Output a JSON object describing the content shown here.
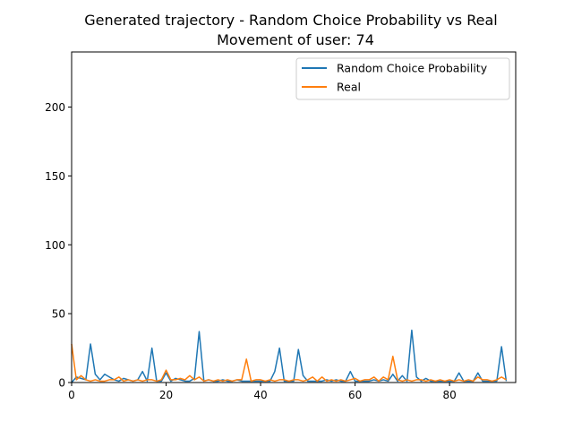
{
  "chart_data": {
    "type": "line",
    "title": "Generated trajectory - Random Choice Probability vs Real",
    "subtitle": "Movement of user: 74",
    "xlabel": "",
    "ylabel": "",
    "xlim": [
      0,
      94
    ],
    "ylim": [
      0,
      240
    ],
    "xticks": [
      0,
      20,
      40,
      60,
      80
    ],
    "yticks": [
      0,
      50,
      100,
      150,
      200
    ],
    "grid": false,
    "legend_position": "top-right",
    "series": [
      {
        "name": "Random Choice Probability",
        "color": "#1f77b4",
        "values": [
          0,
          4,
          3,
          2,
          28,
          6,
          2,
          6,
          4,
          2,
          1,
          3,
          2,
          1,
          2,
          8,
          1,
          25,
          1,
          1,
          7,
          1,
          3,
          2,
          1,
          1,
          3,
          37,
          1,
          2,
          1,
          1,
          2,
          1,
          1,
          2,
          1,
          1,
          1,
          1,
          1,
          1,
          1,
          8,
          25,
          1,
          1,
          1,
          24,
          5,
          1,
          1,
          1,
          1,
          2,
          1,
          2,
          1,
          1,
          8,
          1,
          1,
          1,
          1,
          2,
          1,
          2,
          1,
          6,
          1,
          5,
          1,
          38,
          4,
          1,
          3,
          1,
          1,
          1,
          1,
          1,
          1,
          7,
          1,
          1,
          1,
          7,
          1,
          1,
          1,
          1,
          26,
          1
        ]
      },
      {
        "name": "Real",
        "color": "#ff7f0e",
        "values": [
          28,
          2,
          5,
          2,
          1,
          2,
          1,
          1,
          2,
          2,
          4,
          1,
          2,
          1,
          2,
          1,
          2,
          2,
          1,
          2,
          9,
          2,
          2,
          3,
          2,
          5,
          2,
          4,
          1,
          2,
          1,
          2,
          1,
          2,
          1,
          2,
          2,
          17,
          1,
          2,
          2,
          1,
          2,
          1,
          2,
          2,
          1,
          2,
          2,
          1,
          2,
          4,
          1,
          4,
          1,
          2,
          1,
          2,
          1,
          2,
          3,
          1,
          2,
          2,
          4,
          1,
          4,
          2,
          19,
          2,
          1,
          2,
          1,
          2,
          2,
          1,
          2,
          1,
          2,
          1,
          2,
          1,
          2,
          1,
          2,
          1,
          4,
          2,
          2,
          1,
          2,
          4,
          2
        ]
      }
    ]
  }
}
